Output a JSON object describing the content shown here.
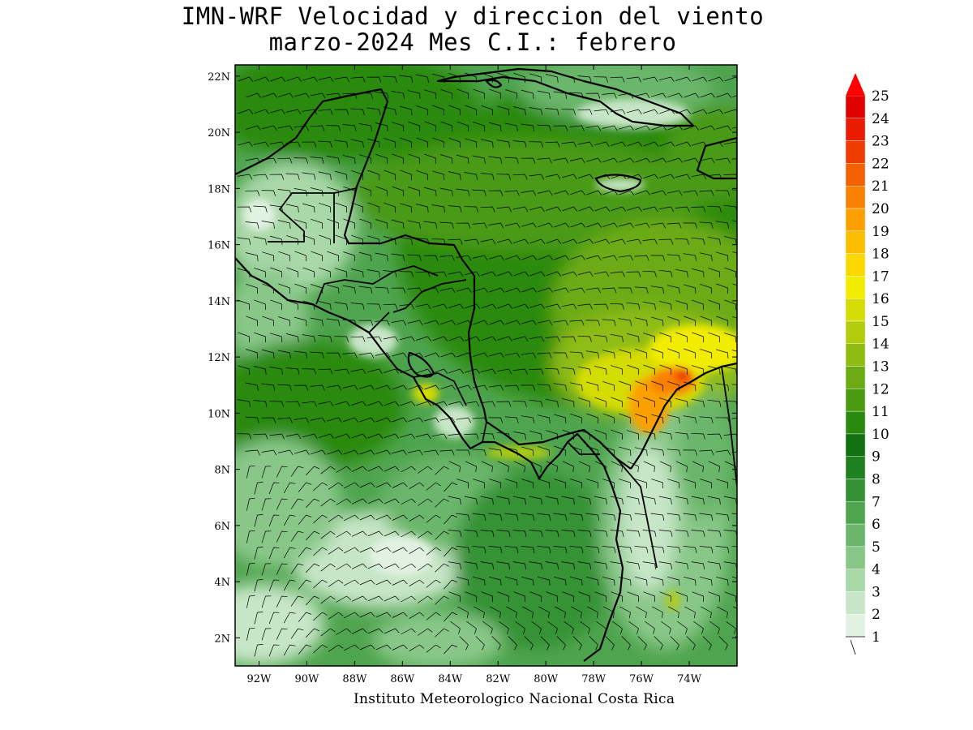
{
  "title_line1": "IMN-WRF Velocidad y direccion del viento",
  "title_line2": "marzo-2024 Mes C.I.: febrero",
  "credit": "Instituto Meteorologico Nacional Costa Rica",
  "map": {
    "lon_range": [
      -93,
      -72
    ],
    "lat_range": [
      1,
      22.4
    ],
    "lat_ticks": [
      "2N",
      "4N",
      "6N",
      "8N",
      "10N",
      "12N",
      "14N",
      "16N",
      "18N",
      "20N",
      "22N"
    ],
    "lon_ticks": [
      "92W",
      "90W",
      "88W",
      "86W",
      "84W",
      "82W",
      "80W",
      "78W",
      "76W",
      "74W"
    ],
    "region": "Central America, Caribbean Sea and eastern Pacific"
  },
  "colorbar": {
    "units_label": "",
    "values": [
      "1",
      "2",
      "3",
      "4",
      "5",
      "6",
      "7",
      "8",
      "9",
      "10",
      "11",
      "12",
      "13",
      "14",
      "15",
      "16",
      "17",
      "18",
      "19",
      "20",
      "21",
      "22",
      "23",
      "24",
      "25"
    ],
    "colors": [
      "#ffffff",
      "#e2f2e2",
      "#c7e6c7",
      "#a9d8a9",
      "#89c789",
      "#6bb66b",
      "#4fa44f",
      "#349234",
      "#1f801f",
      "#127212",
      "#2a8a0f",
      "#4a9a12",
      "#6cab14",
      "#8fbc12",
      "#b3cc0c",
      "#d5dc06",
      "#f2ec00",
      "#fbd800",
      "#fbbe00",
      "#fba000",
      "#f98000",
      "#f56000",
      "#f03c00",
      "#ea1c00",
      "#e00000"
    ],
    "over_color": "#ff0000"
  }
}
